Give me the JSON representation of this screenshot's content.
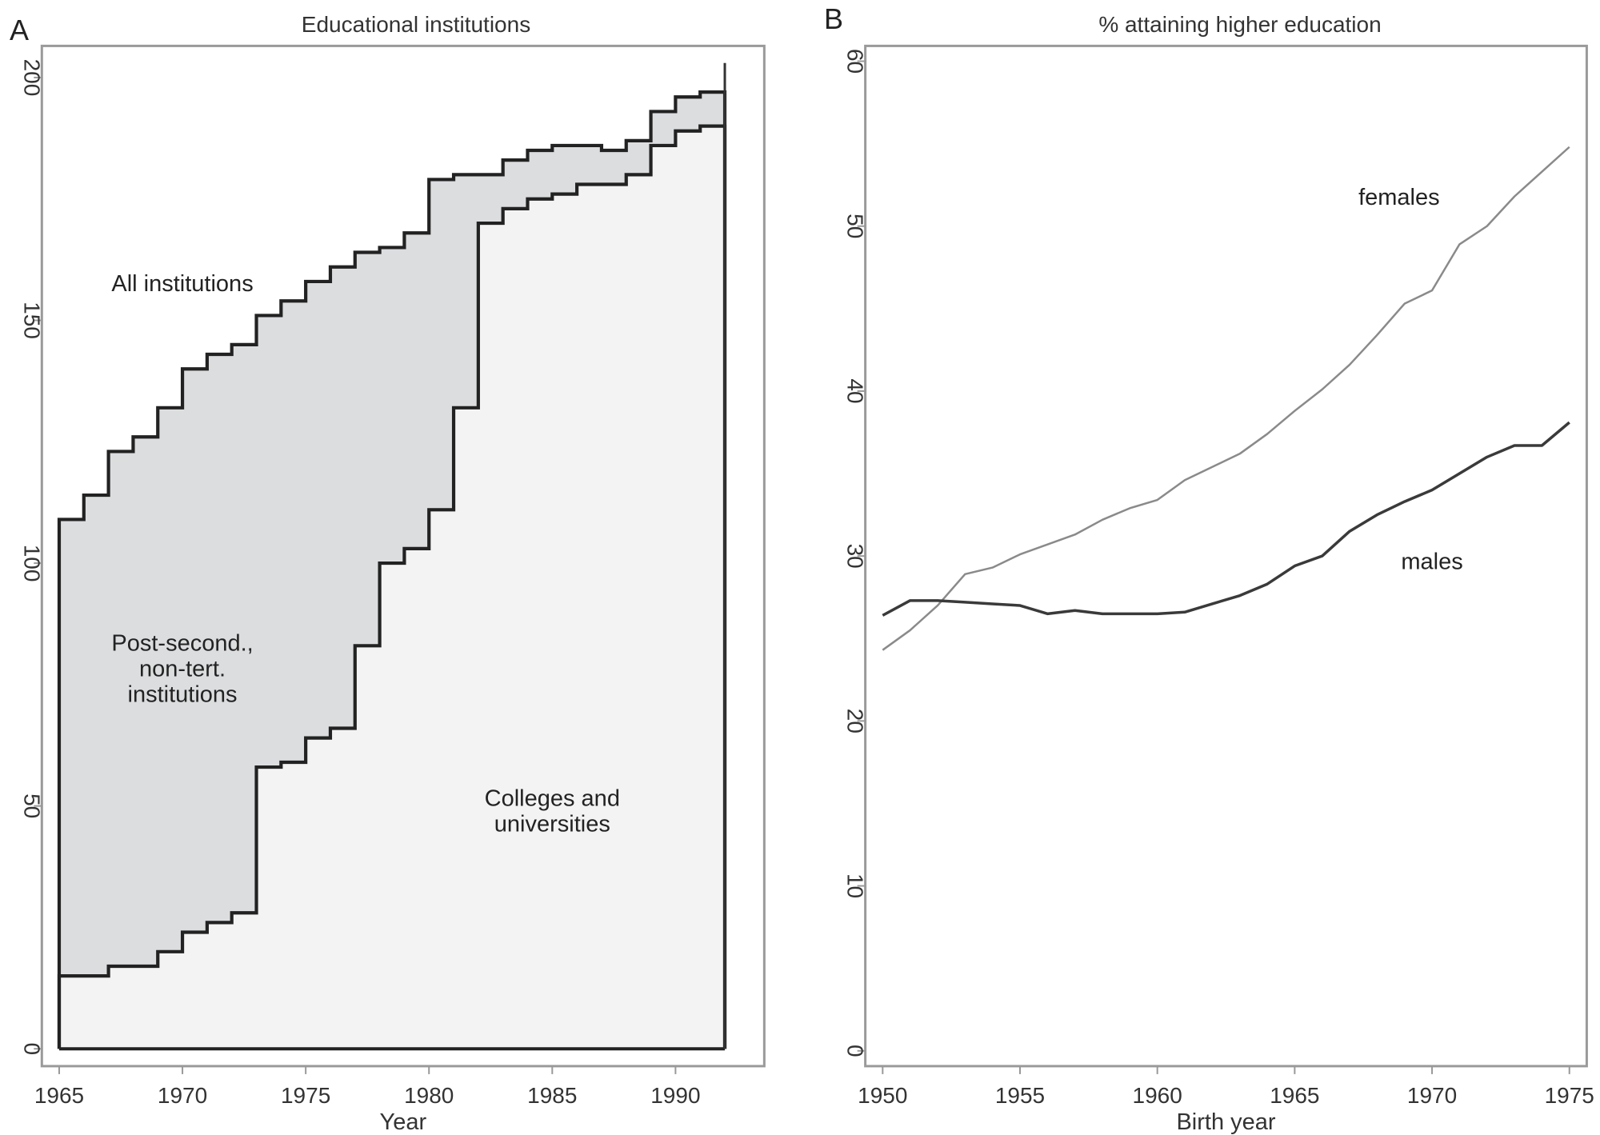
{
  "chart_data": [
    {
      "panel": "A",
      "type": "area",
      "title": "Educational institutions",
      "xlabel": "Year",
      "ylabel": "",
      "xlim": [
        1965,
        1992
      ],
      "ylim": [
        0,
        200
      ],
      "xticks": [
        1965,
        1970,
        1975,
        1980,
        1985,
        1990
      ],
      "yticks": [
        0,
        50,
        100,
        150,
        200
      ],
      "step": true,
      "x": [
        1965,
        1966,
        1967,
        1968,
        1969,
        1970,
        1971,
        1972,
        1973,
        1974,
        1975,
        1976,
        1977,
        1978,
        1979,
        1980,
        1981,
        1982,
        1983,
        1984,
        1985,
        1986,
        1987,
        1988,
        1989,
        1990,
        1991
      ],
      "series": [
        {
          "name": "All institutions",
          "values": [
            109,
            114,
            123,
            126,
            132,
            140,
            143,
            145,
            151,
            154,
            158,
            161,
            164,
            165,
            168,
            179,
            180,
            180,
            183,
            185,
            186,
            186,
            185,
            187,
            193,
            196,
            197
          ],
          "fill": "#dcdddf"
        },
        {
          "name": "Colleges and universities",
          "values": [
            15,
            15,
            17,
            17,
            20,
            24,
            26,
            28,
            58,
            59,
            64,
            66,
            83,
            100,
            103,
            111,
            132,
            170,
            173,
            175,
            176,
            178,
            178,
            180,
            186,
            189,
            190
          ],
          "fill": "#f3f3f3"
        }
      ],
      "annotations": [
        {
          "text": "All institutions",
          "x": 1970,
          "y": 156
        },
        {
          "lines": [
            "Post-second.,",
            "non-tert.",
            "institutions"
          ],
          "x": 1970,
          "y": 82
        },
        {
          "lines": [
            "Colleges and",
            "universities"
          ],
          "x": 1985,
          "y": 50
        }
      ],
      "grid": false,
      "legend": "none"
    },
    {
      "panel": "B",
      "type": "line",
      "title": "% attaining higher education",
      "xlabel": "Birth year",
      "ylabel": "",
      "xlim": [
        1950,
        1975
      ],
      "ylim": [
        0,
        60
      ],
      "xticks": [
        1950,
        1955,
        1960,
        1965,
        1970,
        1975
      ],
      "yticks": [
        0,
        10,
        20,
        30,
        40,
        50,
        60
      ],
      "x": [
        1950,
        1951,
        1952,
        1953,
        1954,
        1955,
        1956,
        1957,
        1958,
        1959,
        1960,
        1961,
        1962,
        1963,
        1964,
        1965,
        1966,
        1967,
        1968,
        1969,
        1970,
        1971,
        1972,
        1973,
        1974,
        1975
      ],
      "series": [
        {
          "name": "females",
          "values": [
            24.3,
            25.5,
            27.0,
            28.9,
            29.3,
            30.1,
            30.7,
            31.3,
            32.2,
            32.9,
            33.4,
            34.6,
            35.4,
            36.2,
            37.4,
            38.8,
            40.1,
            41.6,
            43.4,
            45.3,
            46.1,
            48.9,
            50.0,
            51.8,
            53.3,
            54.8
          ],
          "color": "#8a8a8a"
        },
        {
          "name": "males",
          "values": [
            26.4,
            27.3,
            27.3,
            27.2,
            27.1,
            27.0,
            26.5,
            26.7,
            26.5,
            26.5,
            26.5,
            26.6,
            27.1,
            27.6,
            28.3,
            29.4,
            30.0,
            31.5,
            32.5,
            33.3,
            34.0,
            35.0,
            36.0,
            36.7,
            36.7,
            38.1
          ],
          "color": "#3a3a3a"
        }
      ],
      "annotations": [
        {
          "text": "females",
          "x": 1968.8,
          "y": 51.3
        },
        {
          "text": "males",
          "x": 1970,
          "y": 29.2
        }
      ],
      "grid": false,
      "legend": "none"
    }
  ]
}
